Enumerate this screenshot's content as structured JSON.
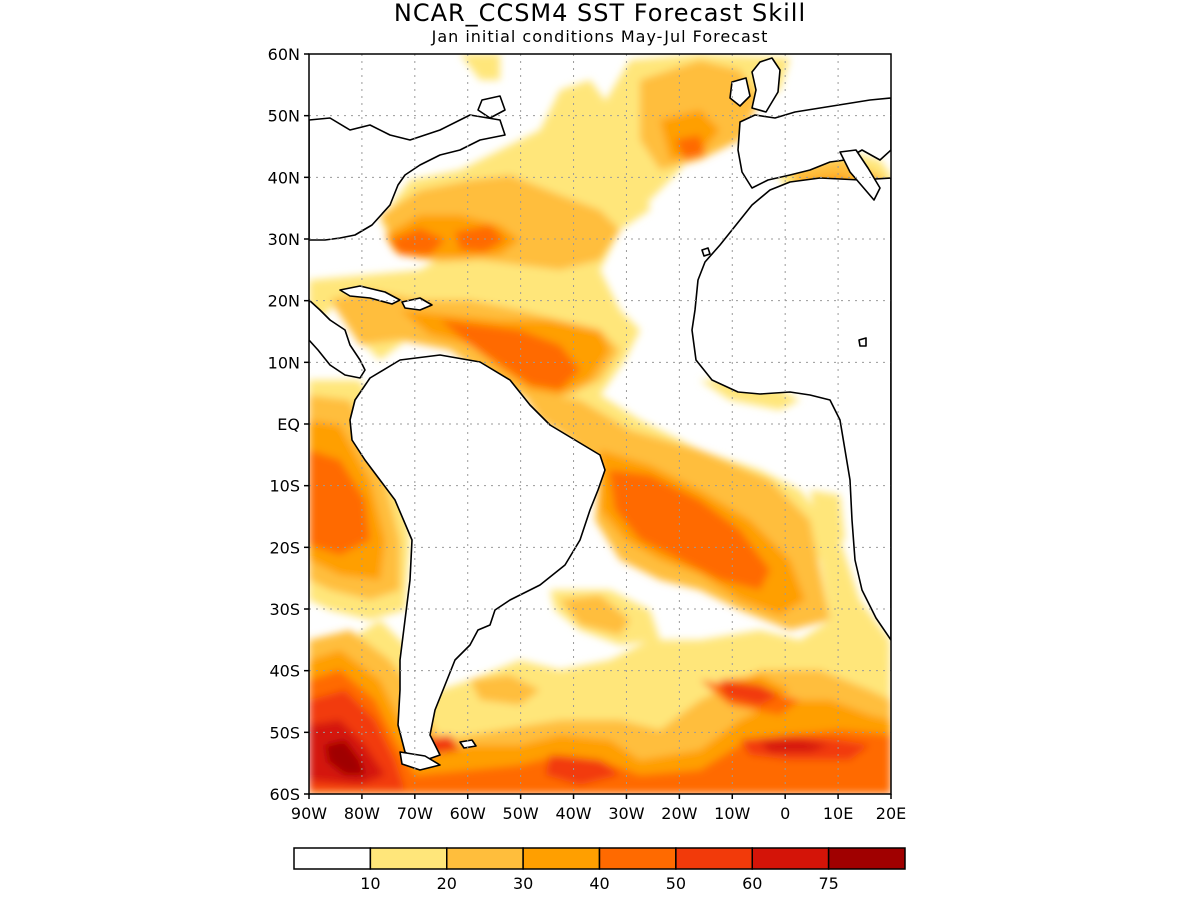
{
  "title": "NCAR_CCSM4 SST Forecast Skill",
  "subtitle": "Jan initial conditions  May-Jul Forecast",
  "map": {
    "lon_range": [
      -90,
      20
    ],
    "lat_range": [
      -60,
      60
    ],
    "lat_ticks": [
      {
        "value": 60,
        "label": "60N"
      },
      {
        "value": 50,
        "label": "50N"
      },
      {
        "value": 40,
        "label": "40N"
      },
      {
        "value": 30,
        "label": "30N"
      },
      {
        "value": 20,
        "label": "20N"
      },
      {
        "value": 10,
        "label": "10N"
      },
      {
        "value": 0,
        "label": "EQ"
      },
      {
        "value": -10,
        "label": "10S"
      },
      {
        "value": -20,
        "label": "20S"
      },
      {
        "value": -30,
        "label": "30S"
      },
      {
        "value": -40,
        "label": "40S"
      },
      {
        "value": -50,
        "label": "50S"
      },
      {
        "value": -60,
        "label": "60S"
      }
    ],
    "lon_ticks": [
      {
        "value": -90,
        "label": "90W"
      },
      {
        "value": -80,
        "label": "80W"
      },
      {
        "value": -70,
        "label": "70W"
      },
      {
        "value": -60,
        "label": "60W"
      },
      {
        "value": -50,
        "label": "50W"
      },
      {
        "value": -40,
        "label": "40W"
      },
      {
        "value": -30,
        "label": "30W"
      },
      {
        "value": -20,
        "label": "20W"
      },
      {
        "value": -10,
        "label": "10W"
      },
      {
        "value": 0,
        "label": "0"
      },
      {
        "value": 10,
        "label": "10E"
      },
      {
        "value": 20,
        "label": "20E"
      }
    ],
    "gridlines": true
  },
  "colorbar": {
    "bins": [
      {
        "color": "#ffffff"
      },
      {
        "color": "#ffe67a"
      },
      {
        "color": "#ffbe3c"
      },
      {
        "color": "#ff9f00"
      },
      {
        "color": "#ff6a00"
      },
      {
        "color": "#f23a0a"
      },
      {
        "color": "#d41408"
      },
      {
        "color": "#a00000"
      }
    ],
    "labels": [
      "10",
      "20",
      "30",
      "40",
      "50",
      "60",
      "75"
    ]
  }
}
